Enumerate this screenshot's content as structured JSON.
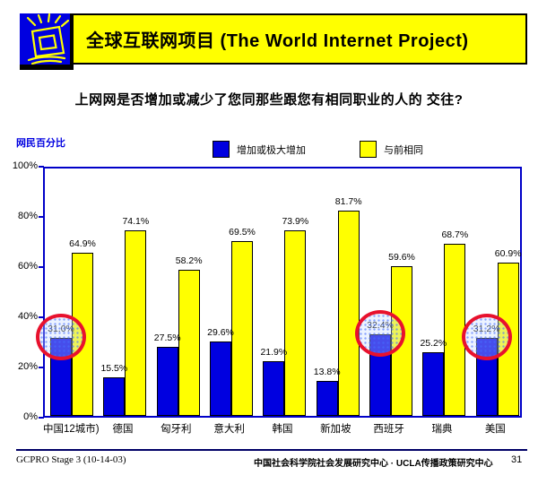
{
  "header": {
    "title": "全球互联网项目 (The World Internet Project)",
    "bg_color": "#FFFF00",
    "icon_bg": "#0000E0"
  },
  "question": "上网网是否增加或减少了您同那些跟您有相同职业的人的 交往?",
  "axis_note": "网民百分比",
  "chart_data": {
    "type": "bar",
    "categories": [
      "中国12城市)",
      "德国",
      "匈牙利",
      "意大利",
      "韩国",
      "新加坡",
      "西班牙",
      "瑞典",
      "美国"
    ],
    "series": [
      {
        "name": "增加或极大增加",
        "color": "#0000E0",
        "values": [
          31.0,
          15.5,
          27.5,
          29.6,
          21.9,
          13.8,
          32.4,
          25.2,
          31.2
        ]
      },
      {
        "name": "与前相同",
        "color": "#FFFF00",
        "values": [
          64.9,
          74.1,
          58.2,
          69.5,
          73.9,
          81.7,
          59.6,
          68.7,
          60.9
        ]
      }
    ],
    "value_suffix": "%",
    "ylabel": "网民百分比",
    "ylim": [
      0,
      100
    ],
    "yticks": [
      "0%",
      "20%",
      "40%",
      "60%",
      "80%",
      "100%"
    ],
    "grid": false,
    "legend_position": "top-center",
    "annotations": {
      "circled_series": 0,
      "circled_indices": [
        0,
        6,
        8
      ],
      "circle_color": "#E8112D"
    }
  },
  "footer": {
    "left": "GCPRO Stage 3 (10-14-03)",
    "center": "中国社会科学院社会发展研究中心 · UCLA传播政策研究中心",
    "page": "31"
  }
}
